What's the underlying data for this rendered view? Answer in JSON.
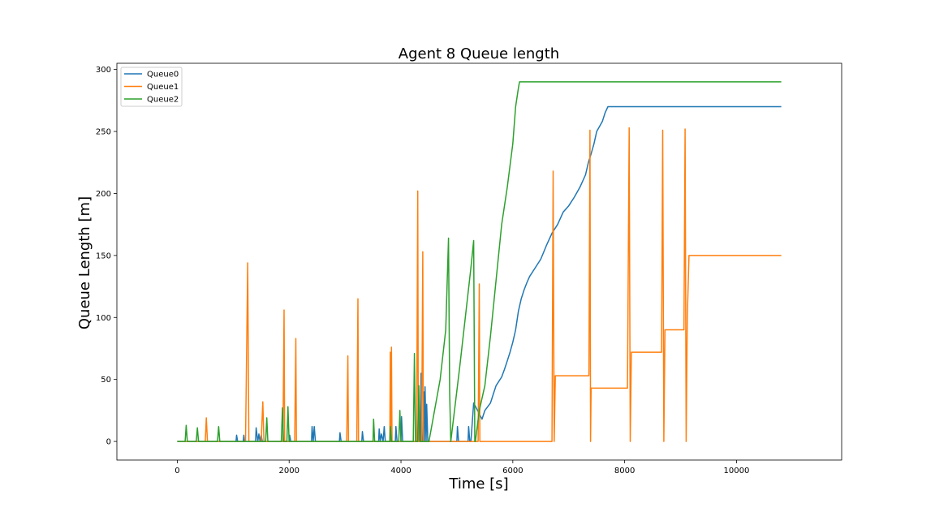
{
  "chart_data": {
    "type": "line",
    "title": "Agent 8 Queue length",
    "xlabel": "Time [s]",
    "ylabel": "Queue Length [m]",
    "xlim": [
      -1080,
      11880
    ],
    "ylim": [
      -15,
      305
    ],
    "xticks": [
      0,
      2000,
      4000,
      6000,
      8000,
      10000
    ],
    "yticks": [
      0,
      50,
      100,
      150,
      200,
      250,
      300
    ],
    "grid": false,
    "legend_position": "top-left",
    "series": [
      {
        "name": "Queue0",
        "color": "#1f77b4",
        "x": [
          0,
          1050,
          1060,
          1080,
          1180,
          1190,
          1200,
          1400,
          1410,
          1440,
          1460,
          1480,
          1500,
          1520,
          1540,
          2000,
          2010,
          2030,
          2400,
          2410,
          2430,
          2450,
          2470,
          2900,
          2910,
          2930,
          3300,
          3310,
          3330,
          3600,
          3610,
          3630,
          3650,
          3680,
          3700,
          3720,
          3900,
          3910,
          3930,
          4000,
          4010,
          4030,
          4300,
          4310,
          4320,
          4350,
          4360,
          4380,
          4400,
          4410,
          4420,
          4430,
          4450,
          4460,
          4480,
          4500,
          5000,
          5010,
          5030,
          5200,
          5210,
          5230,
          5250,
          5300,
          5450,
          5500,
          5600,
          5650,
          5700,
          5800,
          5850,
          5900,
          5950,
          6000,
          6050,
          6100,
          6150,
          6200,
          6250,
          6300,
          6400,
          6500,
          6600,
          6700,
          6800,
          6900,
          7000,
          7100,
          7200,
          7300,
          7350,
          7400,
          7450,
          7500,
          7600,
          7650,
          7700,
          10800
        ],
        "y": [
          0,
          0,
          5,
          0,
          0,
          5,
          0,
          0,
          11,
          0,
          6,
          0,
          5,
          0,
          0,
          0,
          5,
          0,
          0,
          12,
          0,
          12,
          0,
          0,
          7,
          0,
          0,
          8,
          0,
          0,
          10,
          0,
          6,
          0,
          12,
          0,
          0,
          12,
          0,
          0,
          20,
          0,
          0,
          30,
          0,
          0,
          55,
          0,
          0,
          40,
          0,
          44,
          0,
          30,
          0,
          0,
          0,
          12,
          0,
          0,
          12,
          0,
          0,
          31,
          18,
          25,
          31,
          38,
          45,
          52,
          58,
          65,
          72,
          80,
          90,
          105,
          115,
          122,
          128,
          133,
          140,
          147,
          158,
          168,
          175,
          185,
          190,
          197,
          205,
          215,
          225,
          232,
          240,
          250,
          258,
          265,
          270,
          270
        ]
      },
      {
        "name": "Queue1",
        "color": "#ff7f0e",
        "x": [
          0,
          500,
          520,
          540,
          1220,
          1260,
          1280,
          1500,
          1530,
          1550,
          1890,
          1910,
          1920,
          2100,
          2120,
          2130,
          3030,
          3050,
          3060,
          3210,
          3230,
          3240,
          3800,
          3810,
          3820,
          3830,
          3840,
          3850,
          4280,
          4300,
          4310,
          4370,
          4390,
          4400,
          5380,
          5400,
          5410,
          6700,
          6720,
          6740,
          6760,
          6780,
          7360,
          7380,
          7390,
          7400,
          8050,
          8080,
          8100,
          8120,
          8660,
          8680,
          8700,
          8720,
          9060,
          9080,
          9100,
          9120,
          9150,
          10800
        ],
        "y": [
          0,
          0,
          19,
          0,
          0,
          144,
          0,
          0,
          32,
          0,
          0,
          106,
          0,
          0,
          83,
          0,
          0,
          69,
          0,
          0,
          115,
          0,
          0,
          72,
          0,
          76,
          0,
          0,
          0,
          202,
          0,
          0,
          153,
          0,
          0,
          127,
          0,
          0,
          218,
          0,
          53,
          53,
          53,
          251,
          0,
          43,
          43,
          253,
          0,
          72,
          72,
          251,
          0,
          90,
          90,
          252,
          0,
          100,
          150,
          150
        ]
      },
      {
        "name": "Queue2",
        "color": "#2ca02c",
        "x": [
          0,
          140,
          160,
          180,
          340,
          360,
          380,
          720,
          740,
          760,
          1580,
          1600,
          1620,
          1860,
          1880,
          1900,
          1960,
          1980,
          2000,
          3500,
          3510,
          3530,
          3800,
          3810,
          3830,
          3960,
          3980,
          4000,
          4220,
          4240,
          4260,
          4300,
          4320,
          4340,
          4500,
          4600,
          4700,
          4800,
          4850,
          4870,
          4890,
          5050,
          5150,
          5250,
          5300,
          5320,
          5330,
          5400,
          5500,
          5600,
          5700,
          5800,
          5900,
          6000,
          6050,
          6100,
          6120,
          10800
        ],
        "y": [
          0,
          0,
          13,
          0,
          0,
          11,
          0,
          0,
          12,
          0,
          0,
          19,
          0,
          0,
          27,
          0,
          0,
          28,
          0,
          0,
          18,
          0,
          0,
          12,
          0,
          0,
          25,
          0,
          0,
          71,
          0,
          0,
          45,
          0,
          0,
          25,
          50,
          90,
          164,
          40,
          0,
          60,
          100,
          140,
          162,
          0,
          0,
          25,
          45,
          85,
          130,
          175,
          205,
          240,
          270,
          285,
          290,
          290
        ]
      }
    ]
  }
}
